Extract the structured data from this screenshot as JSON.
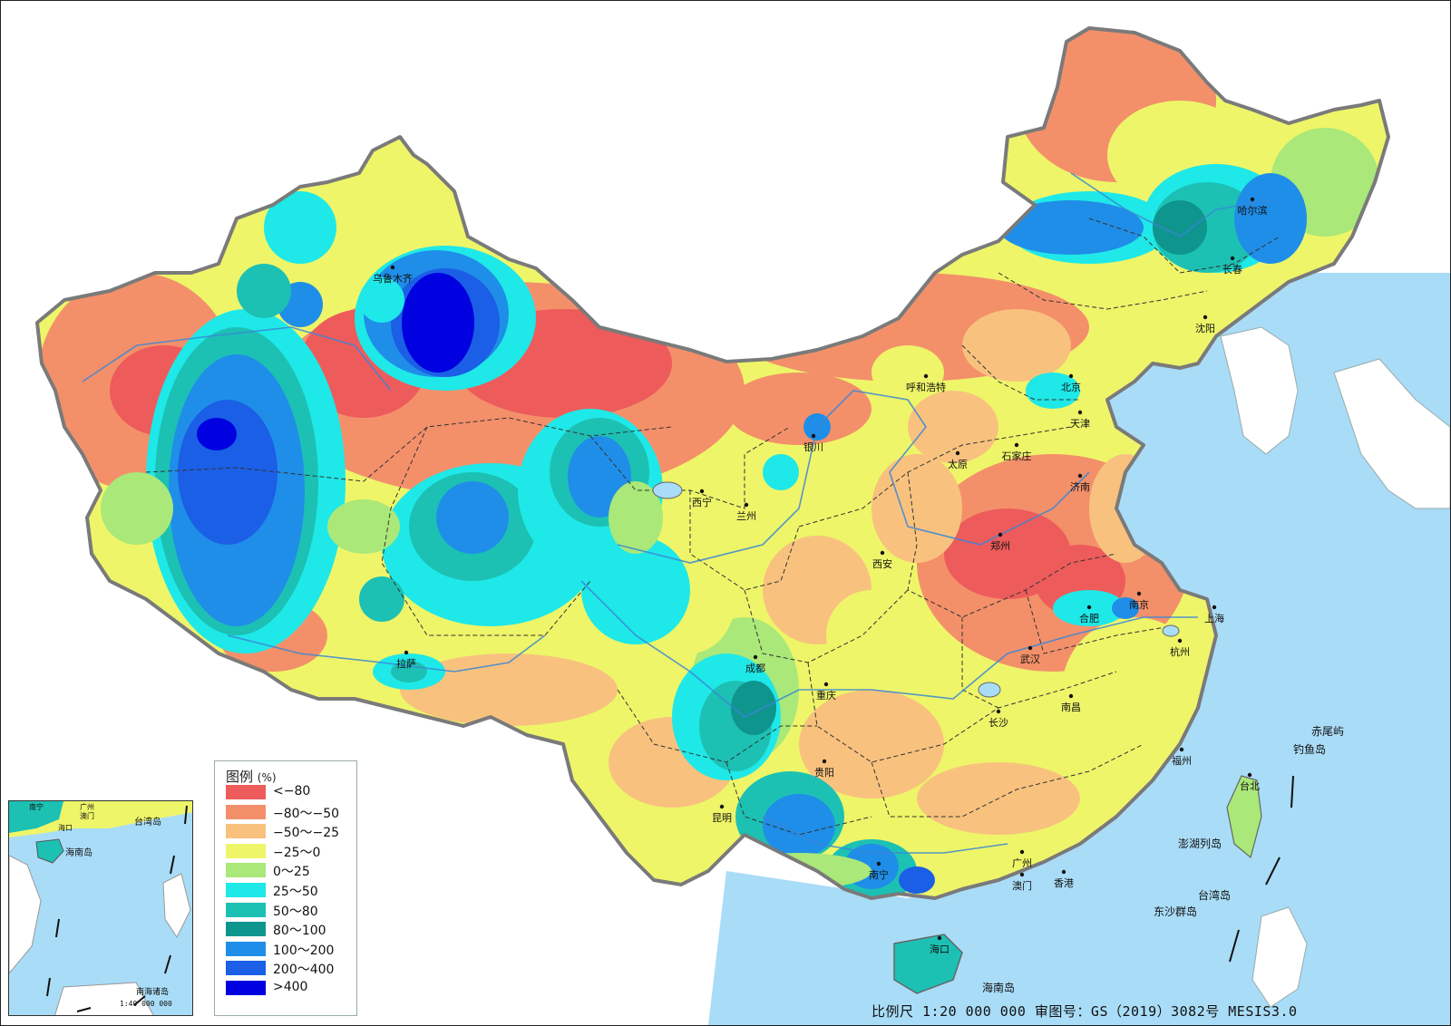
{
  "colors": {
    "sea": "#a9dcf7",
    "land_outside": "#ffffff",
    "border": "#7a7a7a",
    "river": "#3a86d6",
    "province_line": "#333333"
  },
  "legend": {
    "title": "图例",
    "unit": "(%)",
    "items": [
      {
        "label": "<−80",
        "color": "#ee5b5b"
      },
      {
        "label": "−80～−50",
        "color": "#f3906a"
      },
      {
        "label": "−50～−25",
        "color": "#f8c27e"
      },
      {
        "label": "−25～0",
        "color": "#eef569"
      },
      {
        "label": "0～25",
        "color": "#a9e879"
      },
      {
        "label": "25～50",
        "color": "#1fe8e8"
      },
      {
        "label": "50～80",
        "color": "#1cc1b4"
      },
      {
        "label": "80～100",
        "color": "#0e958d"
      },
      {
        "label": "100～200",
        "color": "#1f8ee8"
      },
      {
        "label": "200～400",
        "color": "#1b5fe6"
      },
      {
        "label": ">400",
        "color": "#0000e0"
      }
    ]
  },
  "cities": [
    {
      "id": "wulumuqi",
      "name": "乌鲁木齐"
    },
    {
      "id": "lasa",
      "name": "拉萨"
    },
    {
      "id": "xining",
      "name": "西宁"
    },
    {
      "id": "lanzhou",
      "name": "兰州"
    },
    {
      "id": "yinchuan",
      "name": "银川"
    },
    {
      "id": "huhehaote",
      "name": "呼和浩特"
    },
    {
      "id": "beijing",
      "name": "北京"
    },
    {
      "id": "tianjin",
      "name": "天津"
    },
    {
      "id": "shijiazhuang",
      "name": "石家庄"
    },
    {
      "id": "taiyuan",
      "name": "太原"
    },
    {
      "id": "jinan",
      "name": "济南"
    },
    {
      "id": "zhengzhou",
      "name": "郑州"
    },
    {
      "id": "xian",
      "name": "西安"
    },
    {
      "id": "chengdu",
      "name": "成都"
    },
    {
      "id": "chongqing",
      "name": "重庆"
    },
    {
      "id": "guiyang",
      "name": "贵阳"
    },
    {
      "id": "kunming",
      "name": "昆明"
    },
    {
      "id": "nanning",
      "name": "南宁"
    },
    {
      "id": "guangzhou",
      "name": "广州"
    },
    {
      "id": "aomen",
      "name": "澳门"
    },
    {
      "id": "xianggang",
      "name": "香港"
    },
    {
      "id": "haikou",
      "name": "海口"
    },
    {
      "id": "changsha",
      "name": "长沙"
    },
    {
      "id": "wuhan",
      "name": "武汉"
    },
    {
      "id": "nanchang",
      "name": "南昌"
    },
    {
      "id": "hefei",
      "name": "合肥"
    },
    {
      "id": "nanjing",
      "name": "南京"
    },
    {
      "id": "shanghai",
      "name": "上海"
    },
    {
      "id": "hangzhou",
      "name": "杭州"
    },
    {
      "id": "fuzhou",
      "name": "福州"
    },
    {
      "id": "taibei",
      "name": "台北"
    },
    {
      "id": "haerbin",
      "name": "哈尔滨"
    },
    {
      "id": "changchun",
      "name": "长春"
    },
    {
      "id": "shenyang",
      "name": "沈阳"
    }
  ],
  "islands": [
    {
      "id": "chiweiyu",
      "name": "赤尾屿"
    },
    {
      "id": "diaoyudao",
      "name": "钓鱼岛"
    },
    {
      "id": "penghu",
      "name": "澎湖列岛"
    },
    {
      "id": "taiwandao",
      "name": "台湾岛"
    },
    {
      "id": "dongsha",
      "name": "东沙群岛"
    },
    {
      "id": "hainandao",
      "name": "海南岛"
    }
  ],
  "inset": {
    "labels": [
      {
        "id": "taiwandao",
        "name": "台湾岛"
      },
      {
        "id": "hainandao",
        "name": "海南岛"
      },
      {
        "id": "nanning",
        "name": "南宁"
      },
      {
        "id": "guangzhou",
        "name": "广州"
      },
      {
        "id": "aomen",
        "name": "澳门"
      },
      {
        "id": "haikou",
        "name": "海口"
      }
    ],
    "caption": "南海诸岛",
    "scale": "1:40 000 000"
  },
  "footer": {
    "scale_text": "比例尺 1:20 000 000 审图号：GS（2019）3082号 MESIS3.0"
  }
}
